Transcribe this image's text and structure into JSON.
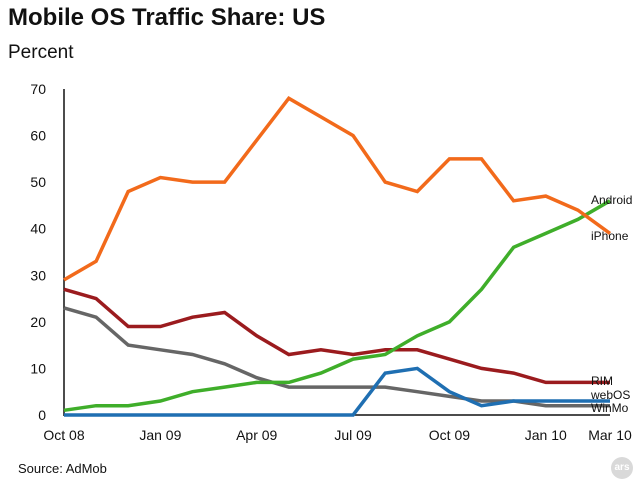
{
  "header": {
    "title": "Mobile OS Traffic Share: US",
    "subtitle": "Percent"
  },
  "footer": {
    "source": "Source: AdMob",
    "badge": "ars"
  },
  "chart_data": {
    "type": "line",
    "title": "Mobile OS Traffic Share: US",
    "ylabel": "Percent",
    "xlabel": "",
    "ylim": [
      0,
      70
    ],
    "yticks": [
      0,
      10,
      20,
      30,
      40,
      50,
      60,
      70
    ],
    "x": [
      "Oct 08",
      "Nov 08",
      "Dec 08",
      "Jan 09",
      "Feb 09",
      "Mar 09",
      "Apr 09",
      "May 09",
      "Jun 09",
      "Jul 09",
      "Aug 09",
      "Sep 09",
      "Oct 09",
      "Nov 09",
      "Dec 09",
      "Jan 10",
      "Feb 10",
      "Mar 10"
    ],
    "xticks": [
      {
        "index": 0,
        "label": "Oct 08"
      },
      {
        "index": 3,
        "label": "Jan 09"
      },
      {
        "index": 6,
        "label": "Apr 09"
      },
      {
        "index": 9,
        "label": "Jul 09"
      },
      {
        "index": 12,
        "label": "Oct 09"
      },
      {
        "index": 15,
        "label": "Jan 10"
      },
      {
        "index": 17,
        "label": "Mar 10"
      }
    ],
    "grid": false,
    "series": [
      {
        "name": "iPhone",
        "color": "#f26a1b",
        "values": [
          29,
          33,
          48,
          51,
          50,
          50,
          59,
          68,
          64,
          60,
          50,
          48,
          55,
          55,
          46,
          47,
          44,
          39
        ]
      },
      {
        "name": "Android",
        "color": "#3fae2a",
        "values": [
          1,
          2,
          2,
          3,
          5,
          6,
          7,
          7,
          9,
          12,
          13,
          17,
          20,
          27,
          36,
          39,
          42,
          46
        ]
      },
      {
        "name": "RIM",
        "color": "#9b1b1e",
        "values": [
          27,
          25,
          19,
          19,
          21,
          22,
          17,
          13,
          14,
          13,
          14,
          14,
          12,
          10,
          9,
          7,
          7,
          7
        ]
      },
      {
        "name": "webOS",
        "color": "#1f6fb2",
        "values": [
          0,
          0,
          0,
          0,
          0,
          0,
          0,
          0,
          0,
          0,
          9,
          10,
          5,
          2,
          3,
          3,
          3,
          3
        ]
      },
      {
        "name": "WinMo",
        "color": "#666666",
        "values": [
          23,
          21,
          15,
          14,
          13,
          11,
          8,
          6,
          6,
          6,
          6,
          5,
          4,
          3,
          3,
          2,
          2,
          2
        ]
      }
    ]
  }
}
